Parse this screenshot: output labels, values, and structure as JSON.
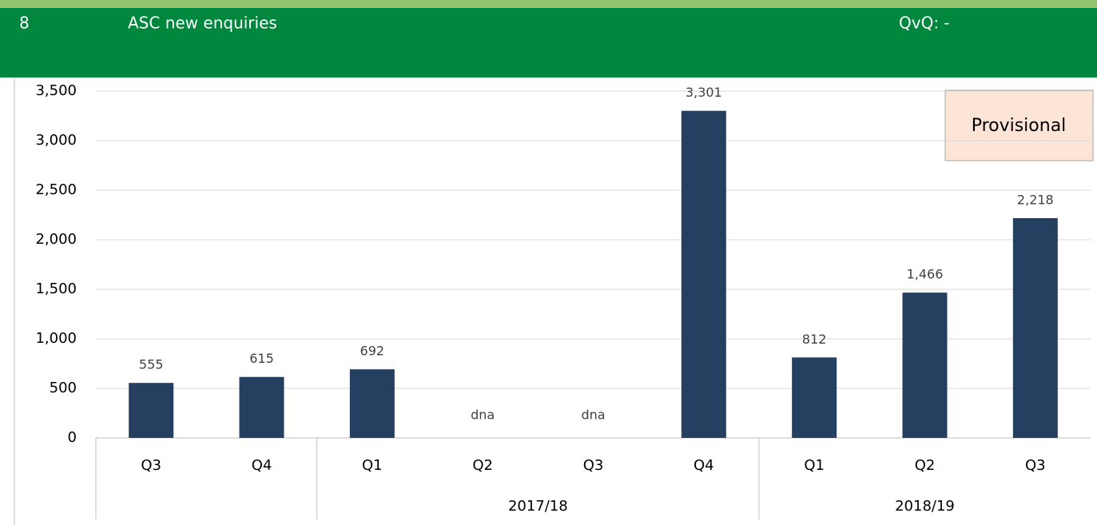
{
  "header": {
    "number": "8",
    "title": "ASC new enquiries",
    "qvq": "QvQ: -"
  },
  "chart_data": {
    "type": "bar",
    "categories": [
      "Q3",
      "Q4",
      "Q1",
      "Q2",
      "Q3",
      "Q4",
      "Q1",
      "Q2",
      "Q3"
    ],
    "groups": [
      {
        "label": null,
        "span": 2
      },
      {
        "label": "2017/18",
        "span": 4
      },
      {
        "label": "2018/19",
        "span": 3
      }
    ],
    "values": [
      555,
      615,
      692,
      null,
      null,
      3301,
      812,
      1466,
      2218
    ],
    "value_labels": [
      "555",
      "615",
      "692",
      "dna",
      "dna",
      "3,301",
      "812",
      "1,466",
      "2,218"
    ],
    "color": "#243f60",
    "ylim": [
      0,
      3500
    ],
    "yticks": [
      0,
      500,
      {
        "value": 1000,
        "label": "1,000"
      },
      {
        "value": 1500,
        "label": "1,500"
      },
      {
        "value": 2000,
        "label": "2,000"
      },
      {
        "value": 2500,
        "label": "2,500"
      },
      {
        "value": 3000,
        "label": "3,000"
      },
      {
        "value": 3500,
        "label": "3,500"
      }
    ],
    "grid": true,
    "annotation": "Provisional"
  }
}
